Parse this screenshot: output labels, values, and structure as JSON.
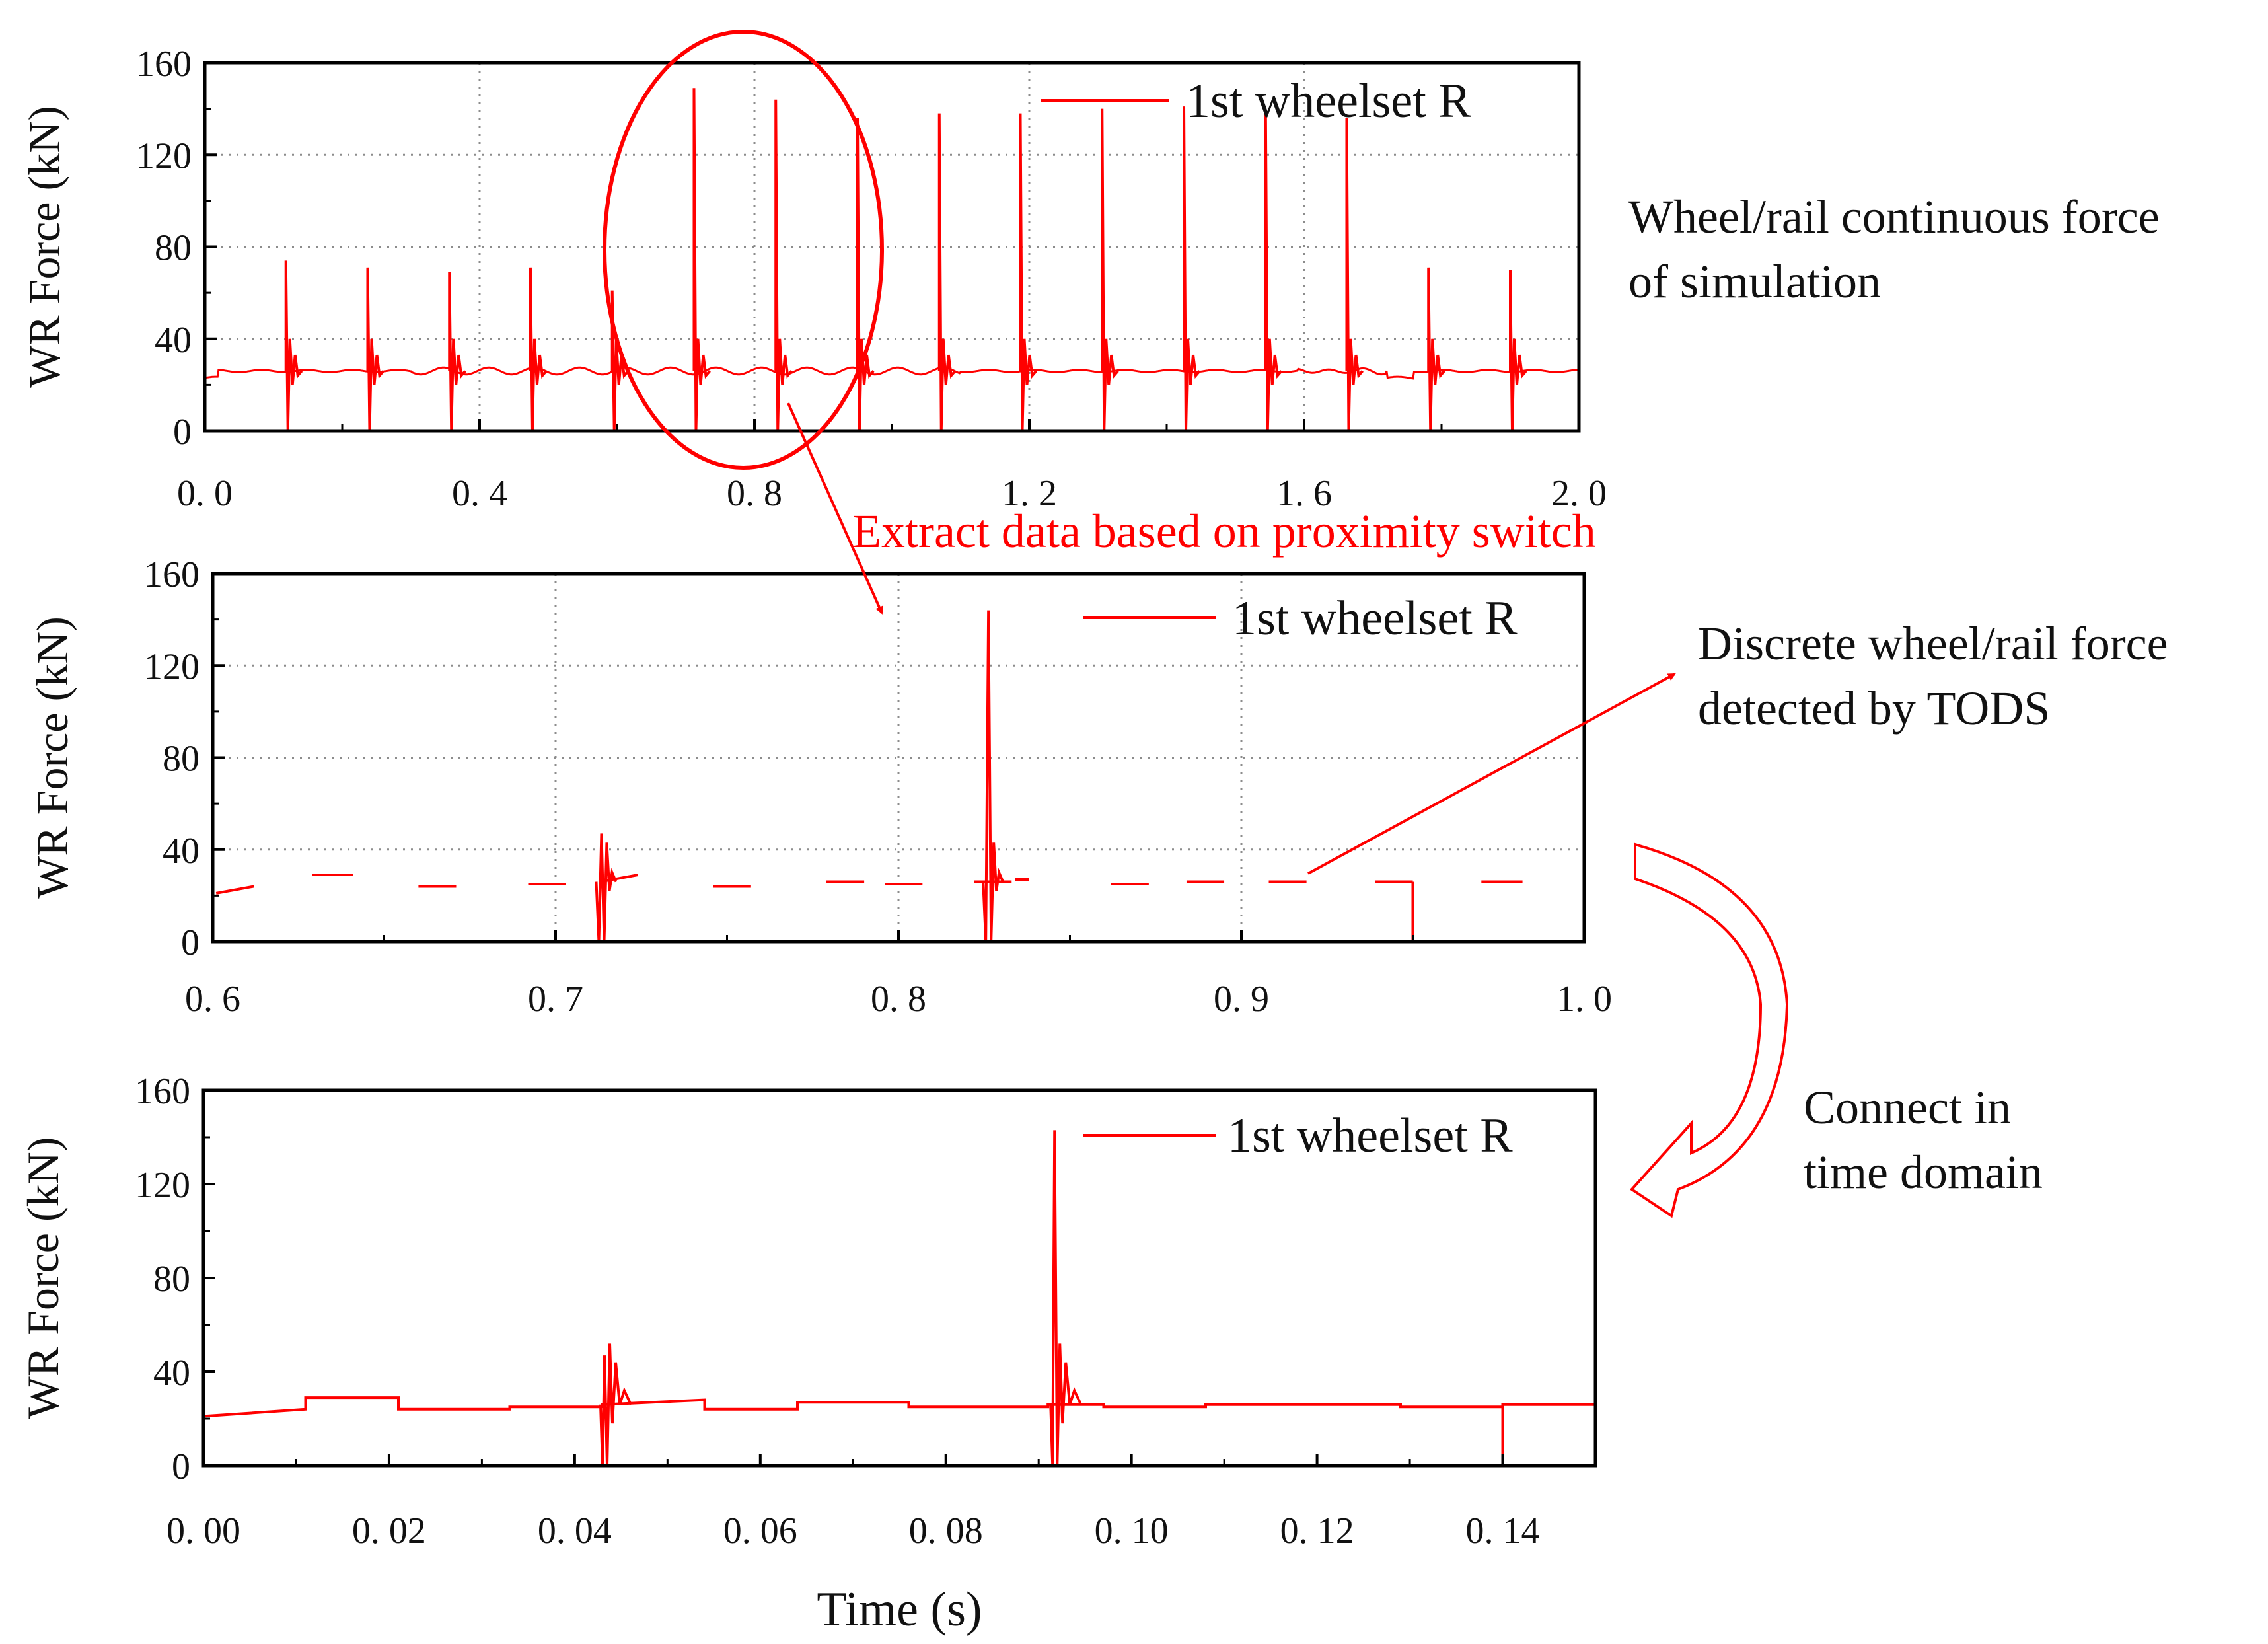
{
  "colors": {
    "series": "#ff0000",
    "axis": "#000000",
    "grid": "#8c8c8c"
  },
  "annotations": {
    "right_top": [
      "Wheel/rail continuous force",
      "of simulation"
    ],
    "extract": "Extract data based on proximity switch",
    "right_middle": [
      "Discrete wheel/rail force",
      "detected by TODS"
    ],
    "right_bottom": [
      "Connect in",
      "time domain"
    ]
  },
  "chart_data": [
    {
      "type": "line",
      "title": "",
      "xlabel": "",
      "ylabel": "WR Force (kN)",
      "xlim": [
        0.0,
        2.0
      ],
      "ylim": [
        0,
        160
      ],
      "xticks": [
        0.0,
        0.4,
        0.8,
        1.2,
        1.6,
        2.0
      ],
      "xtick_labels": [
        "0. 0",
        "0. 4",
        "0. 8",
        "1. 2",
        "1. 6",
        "2. 0"
      ],
      "yticks": [
        0,
        40,
        80,
        120,
        160
      ],
      "ytick_labels": [
        "0",
        "40",
        "80",
        "120",
        "160"
      ],
      "grid": true,
      "legend": {
        "position": "top-right",
        "entries": [
          "1st wheelset R"
        ]
      },
      "series": [
        {
          "name": "1st wheelset R",
          "baseline": 26,
          "impacts": [
            {
              "x": 0.118,
              "peak": 74
            },
            {
              "x": 0.237,
              "peak": 71
            },
            {
              "x": 0.356,
              "peak": 69
            },
            {
              "x": 0.474,
              "peak": 71
            },
            {
              "x": 0.593,
              "peak": 61
            },
            {
              "x": 0.712,
              "peak": 149
            },
            {
              "x": 0.831,
              "peak": 144
            },
            {
              "x": 0.95,
              "peak": 136
            },
            {
              "x": 1.069,
              "peak": 138
            },
            {
              "x": 1.187,
              "peak": 138
            },
            {
              "x": 1.306,
              "peak": 140
            },
            {
              "x": 1.425,
              "peak": 141
            },
            {
              "x": 1.544,
              "peak": 139
            },
            {
              "x": 1.662,
              "peak": 136
            },
            {
              "x": 1.781,
              "peak": 71
            },
            {
              "x": 1.9,
              "peak": 70
            }
          ]
        }
      ]
    },
    {
      "type": "line",
      "title": "",
      "xlabel": "",
      "ylabel": "WR Force (kN)",
      "xlim": [
        0.6,
        1.0
      ],
      "ylim": [
        0,
        160
      ],
      "xticks": [
        0.6,
        0.7,
        0.8,
        0.9,
        1.0
      ],
      "xtick_labels": [
        "0. 6",
        "0. 7",
        "0. 8",
        "0. 9",
        "1. 0"
      ],
      "yticks": [
        0,
        40,
        80,
        120,
        160
      ],
      "ytick_labels": [
        "0",
        "40",
        "80",
        "120",
        "160"
      ],
      "grid": true,
      "legend": {
        "position": "top-right",
        "entries": [
          "1st wheelset R"
        ]
      },
      "series": [
        {
          "name": "1st wheelset R",
          "segments": [
            {
              "x": [
                0.601,
                0.612
              ],
              "y": [
                21,
                24
              ]
            },
            {
              "x": [
                0.629,
                0.641
              ],
              "y": [
                29,
                29
              ]
            },
            {
              "x": [
                0.66,
                0.671
              ],
              "y": [
                24,
                24
              ]
            },
            {
              "x": [
                0.692,
                0.703
              ],
              "y": [
                25,
                25
              ]
            },
            {
              "x": [
                0.713,
                0.724
              ],
              "y": [
                26,
                29
              ],
              "impact_peak": 47
            },
            {
              "x": [
                0.746,
                0.757
              ],
              "y": [
                24,
                24
              ]
            },
            {
              "x": [
                0.779,
                0.79
              ],
              "y": [
                26,
                26
              ]
            },
            {
              "x": [
                0.796,
                0.807
              ],
              "y": [
                25,
                25
              ]
            },
            {
              "x": [
                0.822,
                0.833
              ],
              "y": [
                26,
                26
              ],
              "impact_peak": 144
            },
            {
              "x": [
                0.834,
                0.838
              ],
              "y": [
                27,
                27
              ]
            },
            {
              "x": [
                0.862,
                0.873
              ],
              "y": [
                25,
                25
              ]
            },
            {
              "x": [
                0.884,
                0.895
              ],
              "y": [
                26,
                26
              ]
            },
            {
              "x": [
                0.908,
                0.919
              ],
              "y": [
                26,
                26
              ]
            },
            {
              "x": [
                0.939,
                0.95
              ],
              "y": [
                26,
                26
              ],
              "drop": true
            },
            {
              "x": [
                0.97,
                0.982
              ],
              "y": [
                26,
                26
              ]
            }
          ]
        }
      ]
    },
    {
      "type": "line",
      "title": "",
      "xlabel": "Time (s)",
      "ylabel": "WR Force (kN)",
      "xlim": [
        0.0,
        0.15
      ],
      "ylim": [
        0,
        160
      ],
      "xticks": [
        0.0,
        0.02,
        0.04,
        0.06,
        0.08,
        0.1,
        0.12,
        0.14
      ],
      "xtick_labels": [
        "0. 00",
        "0. 02",
        "0. 04",
        "0. 06",
        "0. 08",
        "0. 10",
        "0. 12",
        "0. 14"
      ],
      "yticks": [
        0,
        40,
        80,
        120,
        160
      ],
      "ytick_labels": [
        "0",
        "40",
        "80",
        "120",
        "160"
      ],
      "grid": false,
      "legend": {
        "position": "top-right",
        "entries": [
          "1st wheelset R"
        ]
      },
      "series": [
        {
          "name": "1st wheelset R",
          "steps": [
            {
              "x": [
                0.0,
                0.011
              ],
              "y": [
                21,
                24
              ]
            },
            {
              "x": [
                0.011,
                0.021
              ],
              "y": [
                29,
                29
              ]
            },
            {
              "x": [
                0.021,
                0.033
              ],
              "y": [
                24,
                24
              ]
            },
            {
              "x": [
                0.033,
                0.043
              ],
              "y": [
                25,
                25
              ]
            },
            {
              "x": [
                0.043,
                0.054
              ],
              "y": [
                26,
                28
              ],
              "impact_peak": 47
            },
            {
              "x": [
                0.054,
                0.064
              ],
              "y": [
                24,
                24
              ]
            },
            {
              "x": [
                0.064,
                0.076
              ],
              "y": [
                27,
                27
              ]
            },
            {
              "x": [
                0.076,
                0.091
              ],
              "y": [
                25,
                25
              ]
            },
            {
              "x": [
                0.091,
                0.097
              ],
              "y": [
                26,
                26
              ],
              "impact_peak": 143
            },
            {
              "x": [
                0.097,
                0.108
              ],
              "y": [
                25,
                25
              ]
            },
            {
              "x": [
                0.108,
                0.129
              ],
              "y": [
                26,
                26
              ]
            },
            {
              "x": [
                0.129,
                0.14
              ],
              "y": [
                25,
                25
              ],
              "drop": true
            },
            {
              "x": [
                0.14,
                0.15
              ],
              "y": [
                26,
                26
              ]
            }
          ]
        }
      ]
    }
  ]
}
